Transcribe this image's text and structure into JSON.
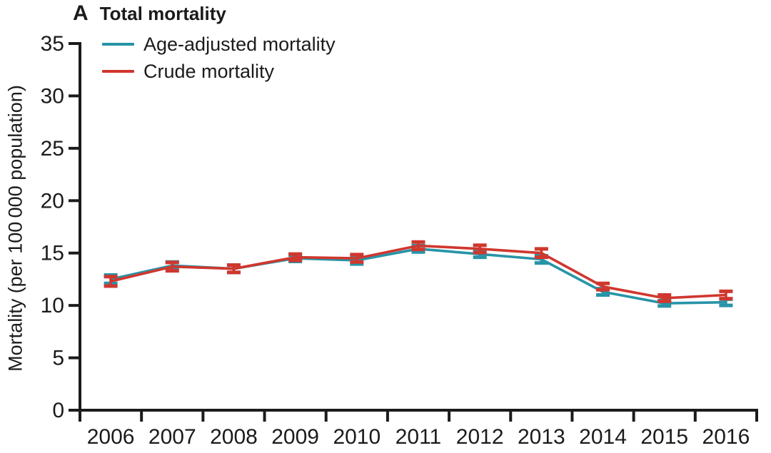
{
  "panel": {
    "label": "A",
    "title": "Total mortality"
  },
  "colors": {
    "axis": "#1b1b1b",
    "age_adjusted": "#2794a7",
    "crude": "#d0372e",
    "background": "#ffffff"
  },
  "chart_data": {
    "type": "line",
    "title": "A Total mortality",
    "xlabel": "",
    "ylabel": "Mortality (per 100 000 population)",
    "categories": [
      "2006",
      "2007",
      "2008",
      "2009",
      "2010",
      "2011",
      "2012",
      "2013",
      "2014",
      "2015",
      "2016"
    ],
    "ylim": [
      0,
      35
    ],
    "yticks": [
      0,
      5,
      10,
      15,
      20,
      25,
      30,
      35
    ],
    "grid": false,
    "legend_position": "top-left",
    "error_bars": true,
    "series": [
      {
        "name": "Age-adjusted mortality",
        "color": "#2794a7",
        "values": [
          12.5,
          13.8,
          13.5,
          14.5,
          14.3,
          15.4,
          14.9,
          14.4,
          11.3,
          10.2,
          10.3
        ],
        "error": [
          0.4,
          0.35,
          0.35,
          0.3,
          0.35,
          0.3,
          0.3,
          0.35,
          0.3,
          0.25,
          0.3
        ]
      },
      {
        "name": "Crude mortality",
        "color": "#d0372e",
        "values": [
          12.3,
          13.7,
          13.5,
          14.6,
          14.5,
          15.7,
          15.4,
          15.0,
          11.8,
          10.7,
          11.0
        ],
        "error": [
          0.45,
          0.4,
          0.35,
          0.3,
          0.35,
          0.35,
          0.35,
          0.4,
          0.3,
          0.3,
          0.35
        ]
      }
    ]
  }
}
